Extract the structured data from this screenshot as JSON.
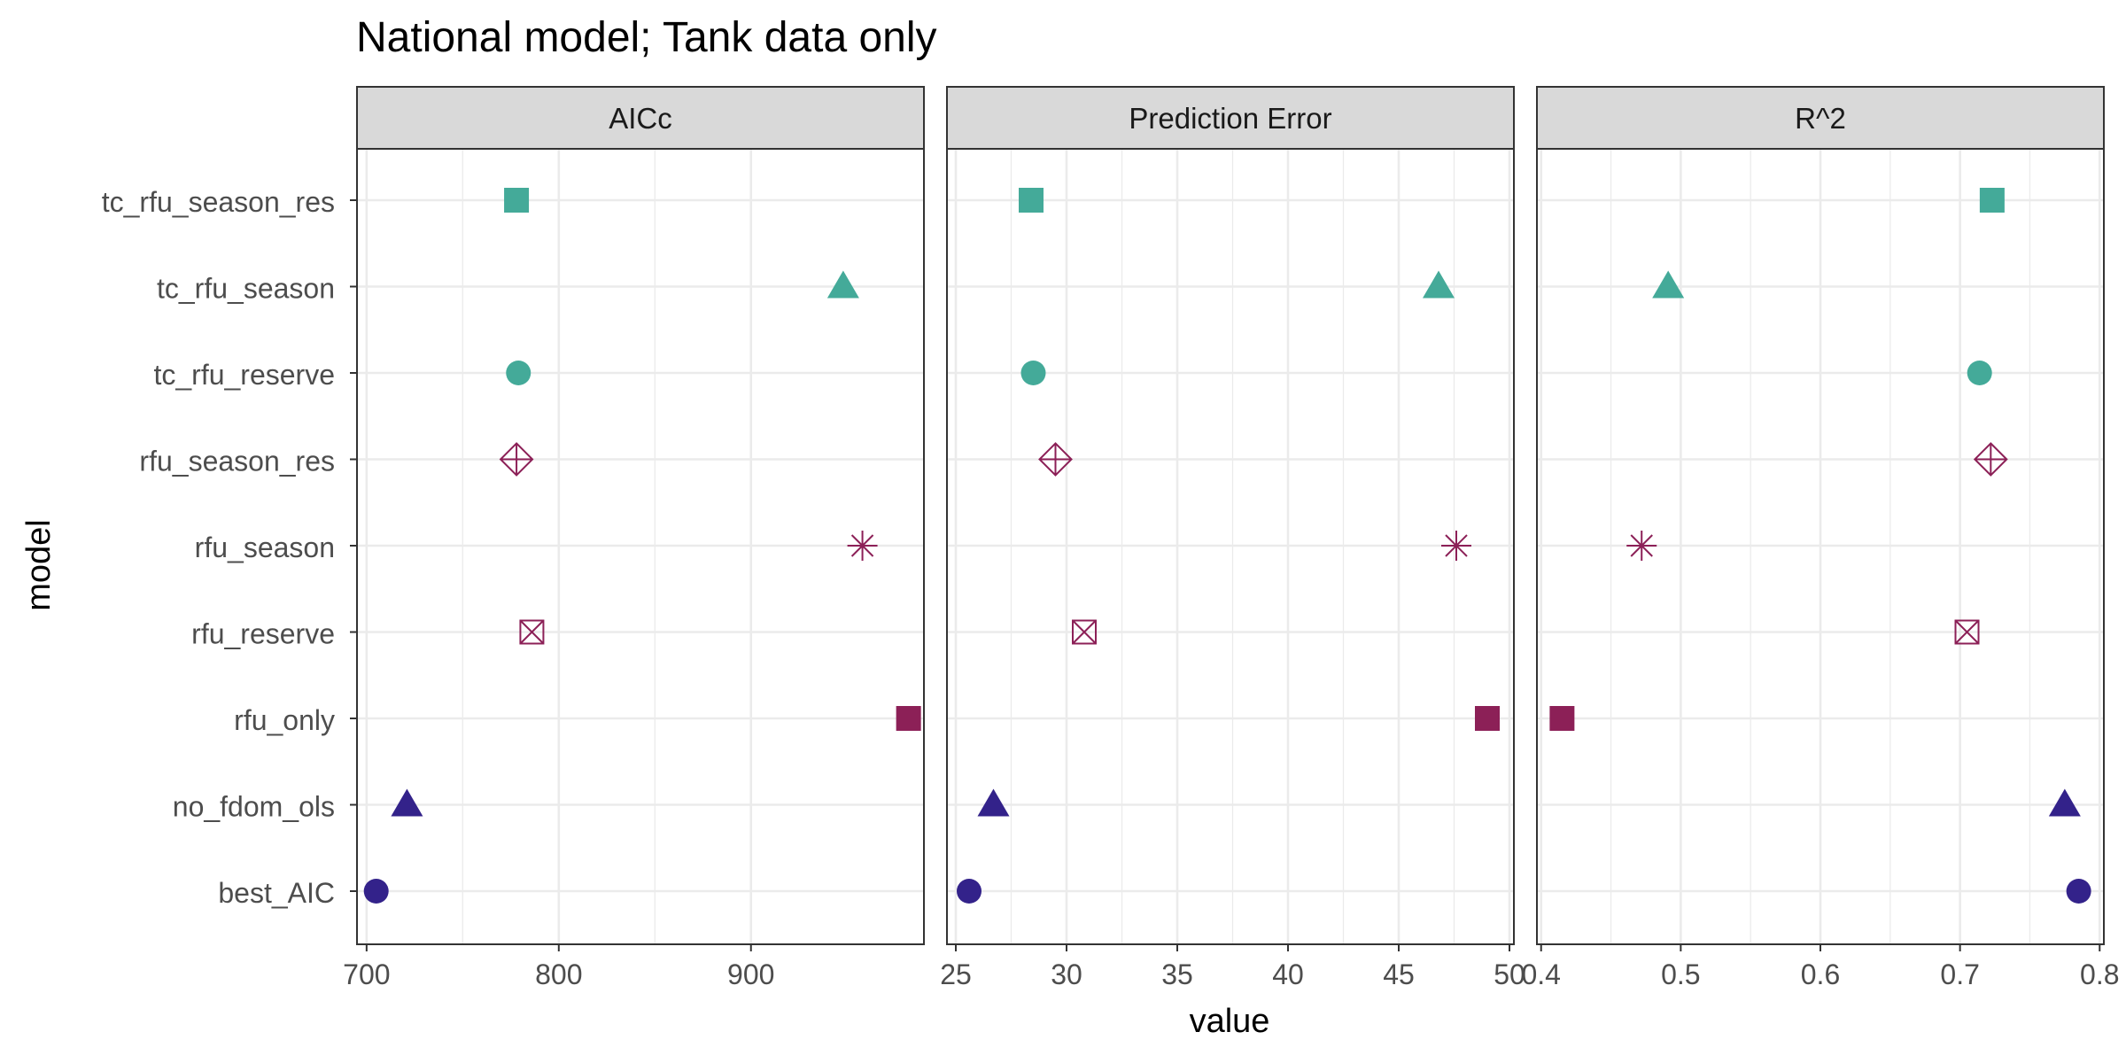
{
  "chart_data": {
    "type": "scatter",
    "title": "National model; Tank data only",
    "xlabel": "value",
    "ylabel": "model",
    "grid": true,
    "legend": "none",
    "models": [
      "best_AIC",
      "no_fdom_ols",
      "rfu_only",
      "rfu_reserve",
      "rfu_season",
      "rfu_season_res",
      "tc_rfu_reserve",
      "tc_rfu_season",
      "tc_rfu_season_res"
    ],
    "styles": {
      "best_AIC": {
        "shape": "circle",
        "color": "#33228A"
      },
      "no_fdom_ols": {
        "shape": "triangle",
        "color": "#33228A"
      },
      "rfu_only": {
        "shape": "square",
        "color": "#8C2057"
      },
      "rfu_reserve": {
        "shape": "square-cross",
        "color": "#8C2057"
      },
      "rfu_season": {
        "shape": "asterisk",
        "color": "#8C2057"
      },
      "rfu_season_res": {
        "shape": "diamond-plus",
        "color": "#8C2057"
      },
      "tc_rfu_reserve": {
        "shape": "circle",
        "color": "#44AA99"
      },
      "tc_rfu_season": {
        "shape": "triangle",
        "color": "#44AA99"
      },
      "tc_rfu_season_res": {
        "shape": "square",
        "color": "#44AA99"
      }
    },
    "panels": [
      {
        "strip": "AICc",
        "xlim": [
          695,
          990
        ],
        "ticks": [
          700,
          800,
          900
        ],
        "tick_labels": [
          "700",
          "800",
          "900"
        ],
        "values": {
          "best_AIC": 705,
          "no_fdom_ols": 721,
          "rfu_only": 982,
          "rfu_reserve": 786,
          "rfu_season": 958,
          "rfu_season_res": 778,
          "tc_rfu_reserve": 779,
          "tc_rfu_season": 948,
          "tc_rfu_season_res": 778
        }
      },
      {
        "strip": "Prediction Error",
        "xlim": [
          24.6,
          50.2
        ],
        "ticks": [
          25,
          30,
          35,
          40,
          45,
          50
        ],
        "tick_labels": [
          "25",
          "30",
          "35",
          "40",
          "45",
          "50"
        ],
        "values": {
          "best_AIC": 25.6,
          "no_fdom_ols": 26.7,
          "rfu_only": 49.0,
          "rfu_reserve": 30.8,
          "rfu_season": 47.6,
          "rfu_season_res": 29.5,
          "tc_rfu_reserve": 28.5,
          "tc_rfu_season": 46.8,
          "tc_rfu_season_res": 28.4
        }
      },
      {
        "strip": "R^2",
        "xlim": [
          0.397,
          0.803
        ],
        "ticks": [
          0.4,
          0.5,
          0.6,
          0.7,
          0.8
        ],
        "tick_labels": [
          "0.4",
          "0.5",
          "0.6",
          "0.7",
          "0.8"
        ],
        "values": {
          "best_AIC": 0.785,
          "no_fdom_ols": 0.775,
          "rfu_only": 0.415,
          "rfu_reserve": 0.705,
          "rfu_season": 0.472,
          "rfu_season_res": 0.722,
          "tc_rfu_reserve": 0.714,
          "tc_rfu_season": 0.491,
          "tc_rfu_season_res": 0.723
        }
      }
    ]
  }
}
